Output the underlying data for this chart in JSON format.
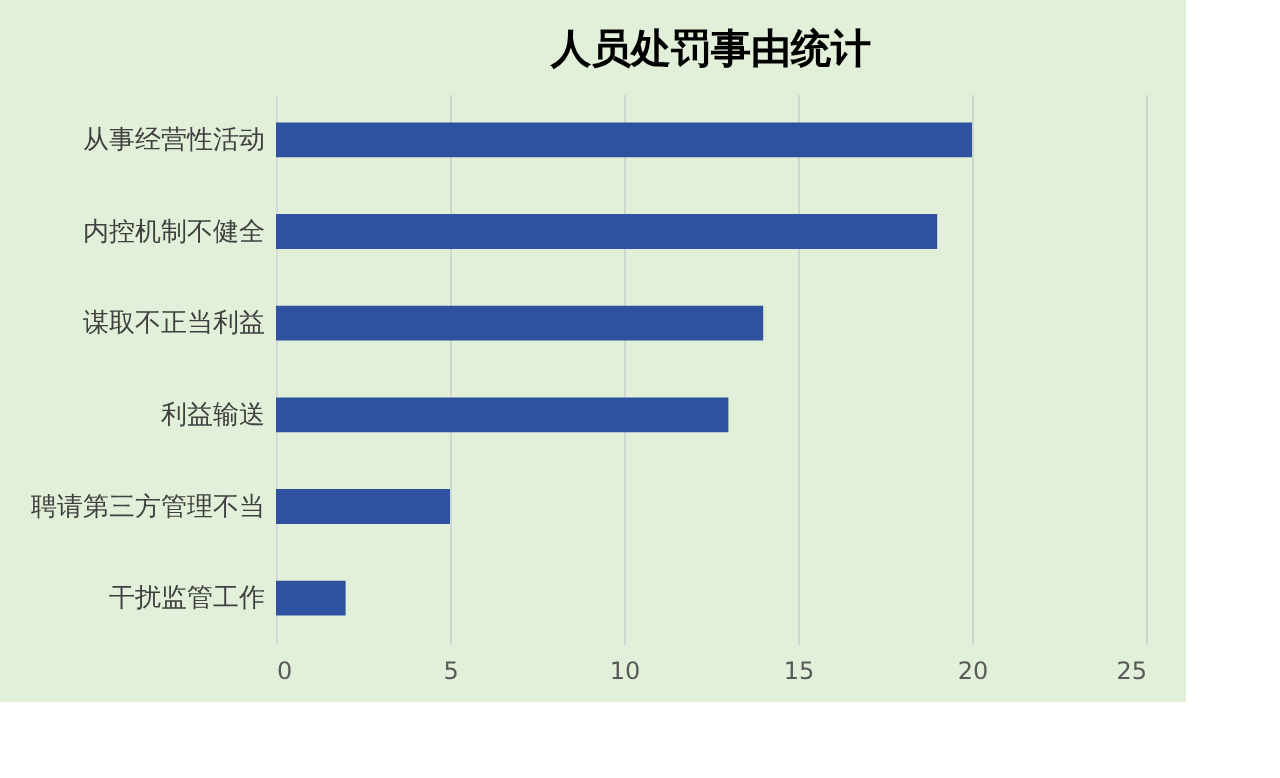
{
  "chart_data": {
    "type": "bar",
    "orientation": "horizontal",
    "title": "人员处罚事由统计",
    "categories": [
      "从事经营性活动",
      "内控机制不健全",
      "谋取不正当利益",
      "利益输送",
      "聘请第三方管理不当",
      "干扰监管工作"
    ],
    "values": [
      20,
      19,
      14,
      13,
      5,
      2
    ],
    "color": "#2e52a0",
    "xlim": [
      0,
      25
    ],
    "xticks": [
      0,
      5,
      10,
      15,
      20,
      25
    ],
    "grid": "x"
  }
}
